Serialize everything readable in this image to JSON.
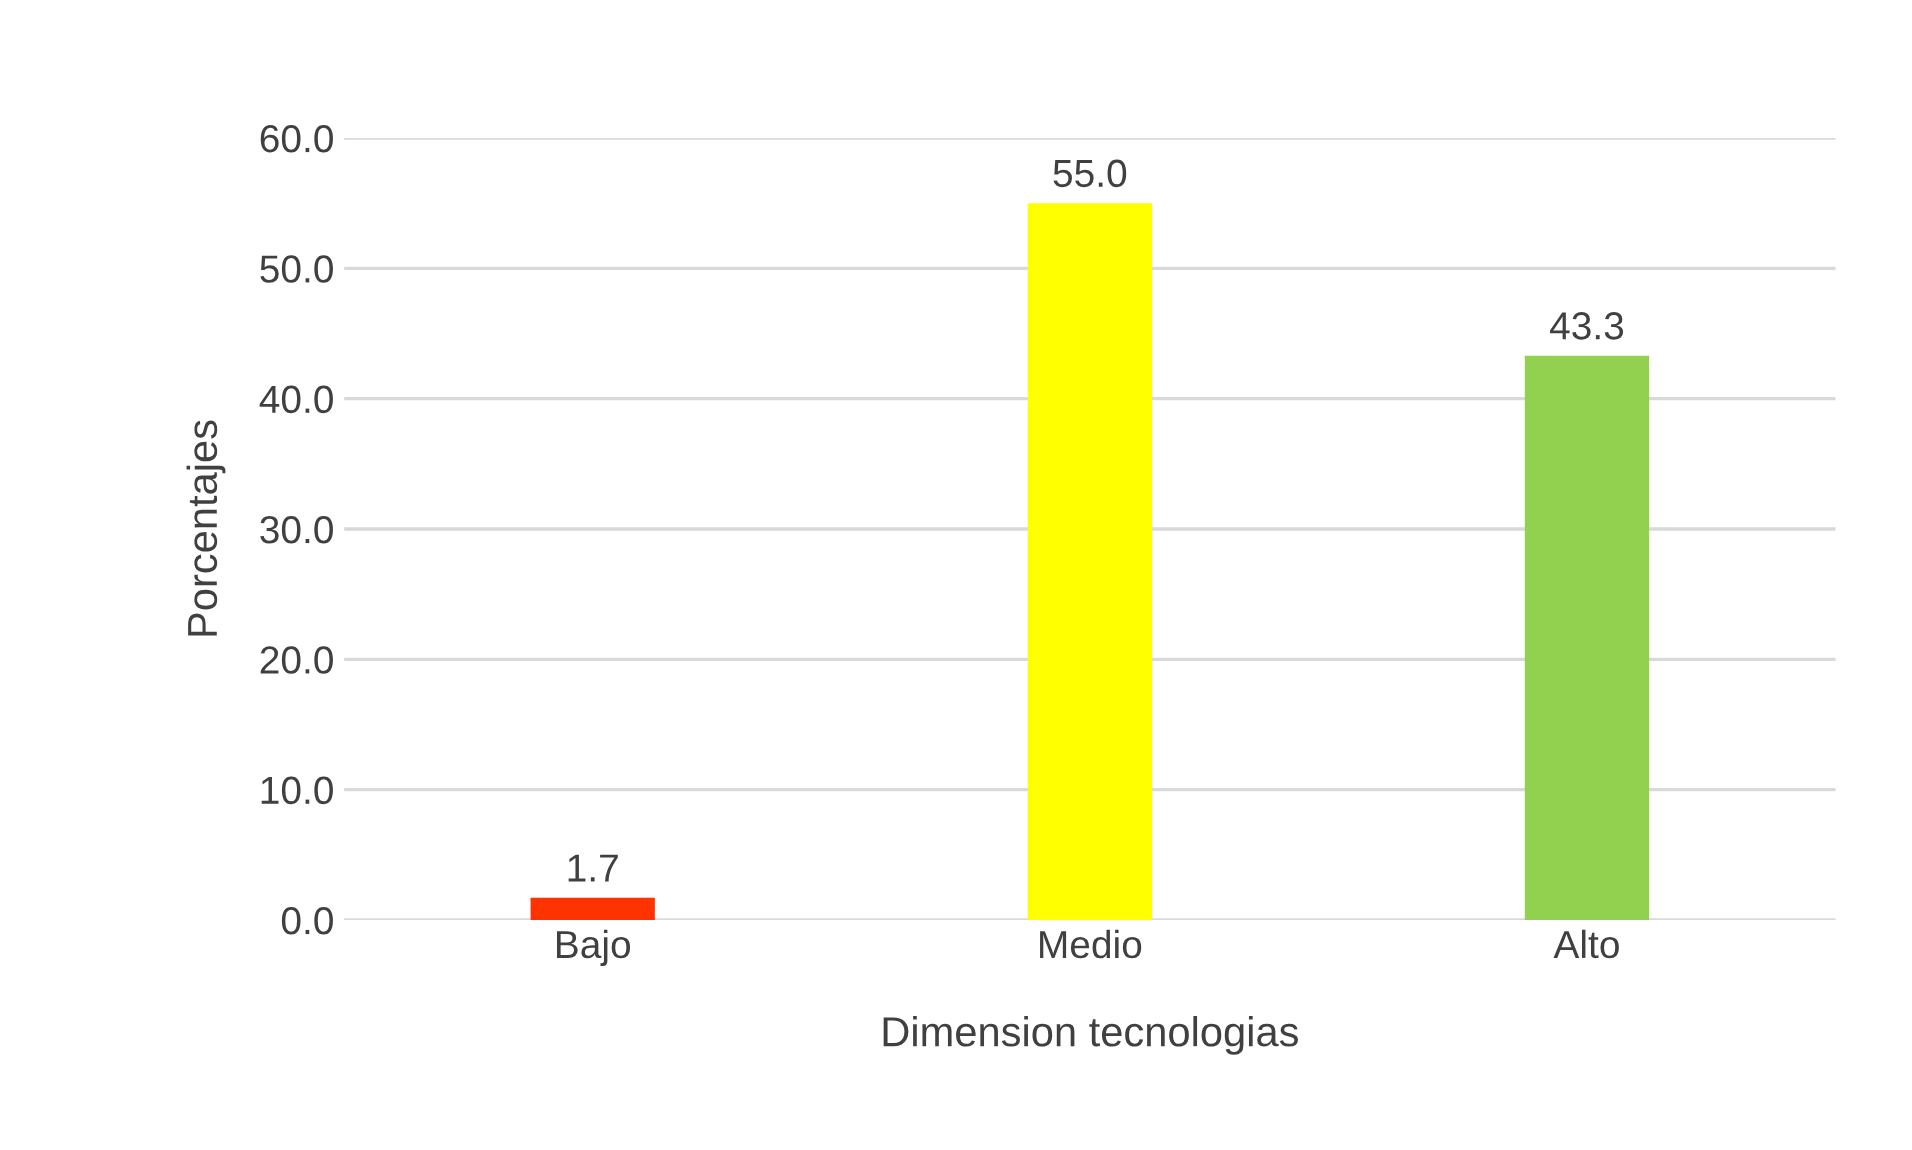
{
  "chart_data": {
    "type": "bar",
    "xlabel": "Dimension tecnologias",
    "ylabel": "Porcentajes",
    "categories": [
      "Bajo",
      "Medio",
      "Alto"
    ],
    "values": [
      1.7,
      55.0,
      43.3
    ],
    "colors": [
      "#ff3300",
      "#ffff00",
      "#92d050"
    ],
    "value_labels": [
      "1.7",
      "55.0",
      "43.3"
    ],
    "ylim": [
      0,
      60
    ],
    "yticks": [
      {
        "value": 0,
        "label": "0.0"
      },
      {
        "value": 10,
        "label": "10.0"
      },
      {
        "value": 20,
        "label": "20.0"
      },
      {
        "value": 30,
        "label": "30.0"
      },
      {
        "value": 40,
        "label": "40.0"
      },
      {
        "value": 50,
        "label": "50.0"
      },
      {
        "value": 60,
        "label": "60.0"
      }
    ],
    "grid": "y"
  }
}
